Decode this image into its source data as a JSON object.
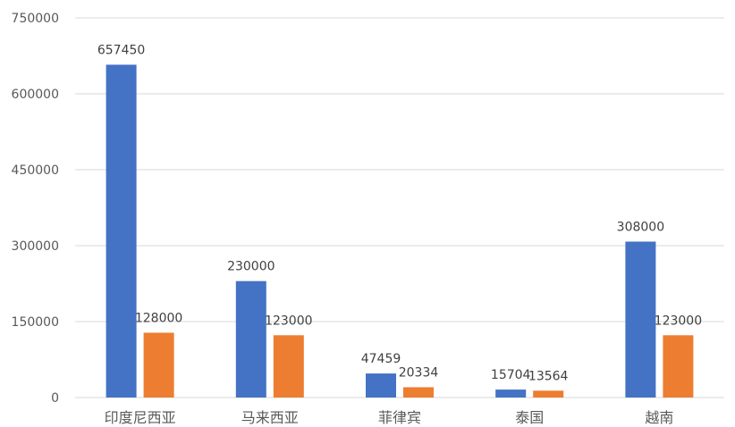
{
  "chart_data": {
    "type": "bar",
    "categories": [
      "印度尼西亚",
      "马来西亚",
      "菲律宾",
      "泰国",
      "越南"
    ],
    "series": [
      {
        "values": [
          657450,
          230000,
          47459,
          15704,
          308000
        ],
        "color": "#4472c4"
      },
      {
        "values": [
          128000,
          123000,
          20334,
          13564,
          123000
        ],
        "color": "#ed7d31"
      }
    ],
    "yticks": [
      0,
      150000,
      300000,
      450000,
      600000,
      750000
    ],
    "ylim": [
      0,
      750000
    ],
    "grid": true,
    "legend": "none",
    "data_labels": true
  }
}
